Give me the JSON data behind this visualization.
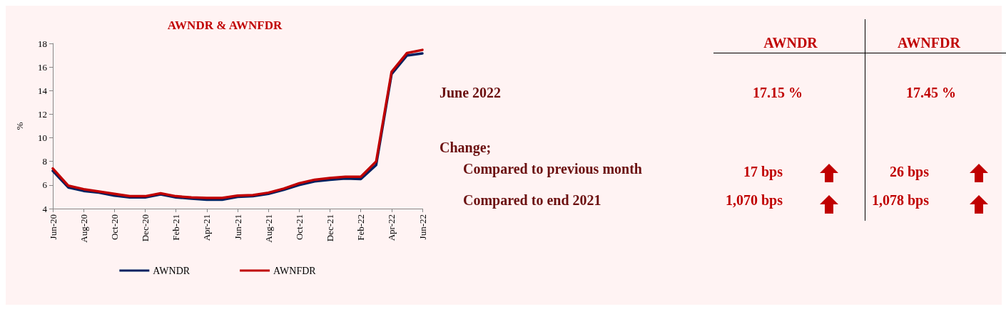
{
  "chart_data": [
    {
      "type": "line",
      "title": "AWNDR & AWNFDR",
      "ylabel": "%",
      "categories": [
        "Jun-20",
        null,
        "Aug-20",
        null,
        "Oct-20",
        null,
        "Dec-20",
        null,
        "Feb-21",
        null,
        "Apr-21",
        null,
        "Jun-21",
        null,
        "Aug-21",
        null,
        "Oct-21",
        null,
        "Dec-21",
        null,
        "Feb-22",
        null,
        "Apr-22",
        null,
        "Jun-22"
      ],
      "series": [
        {
          "name": "AWNDR",
          "color": "#002060",
          "values": [
            7.2,
            5.8,
            5.5,
            5.35,
            5.1,
            4.95,
            4.95,
            5.2,
            4.95,
            4.85,
            4.75,
            4.75,
            5.0,
            5.05,
            5.25,
            5.6,
            6.0,
            6.3,
            6.45,
            6.55,
            6.5,
            7.7,
            15.4,
            16.98,
            17.15
          ]
        },
        {
          "name": "AWNFDR",
          "color": "#c00000",
          "values": [
            7.4,
            5.95,
            5.65,
            5.45,
            5.25,
            5.05,
            5.05,
            5.3,
            5.05,
            4.95,
            4.9,
            4.9,
            5.1,
            5.15,
            5.35,
            5.7,
            6.15,
            6.45,
            6.6,
            6.7,
            6.7,
            8.0,
            15.6,
            17.19,
            17.45
          ]
        }
      ],
      "ylim": [
        4,
        18
      ],
      "yticks": [
        4,
        6,
        8,
        10,
        12,
        14,
        16,
        18
      ],
      "grid": false,
      "legend": "bottom",
      "marker": "none",
      "line_style": "solid"
    },
    {
      "type": "other",
      "annotations": [
        "AWNDR",
        "AWNFDR",
        "June 2022",
        "17.15 %",
        "17.45 %",
        "Change;",
        "Compared to previous month",
        "17 bps",
        "26 bps",
        "Compared to end 2021",
        "1,070 bps",
        "1,078 bps"
      ]
    }
  ]
}
